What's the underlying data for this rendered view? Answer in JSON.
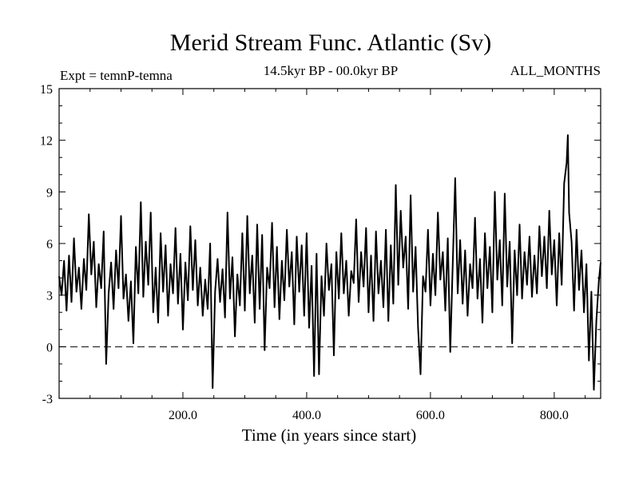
{
  "chart_data": {
    "type": "line",
    "title": "Merid Stream Func. Atlantic (Sv)",
    "subtitle": "14.5kyr BP - 00.0kyr BP",
    "left_note": "Expt = temnP-temna",
    "right_note": "ALL_MONTHS",
    "xlabel": "Time (in years since start)",
    "ylabel": "",
    "xlim": [
      0,
      875
    ],
    "ylim": [
      -3,
      15
    ],
    "x_ticks": [
      200,
      400,
      600,
      800
    ],
    "x_tick_labels": [
      "200.0",
      "400.0",
      "600.0",
      "800.0"
    ],
    "y_ticks": [
      -3,
      0,
      3,
      6,
      9,
      12,
      15
    ],
    "y_tick_labels": [
      "-3",
      "0",
      "3",
      "6",
      "9",
      "12",
      "15"
    ],
    "reference_line": {
      "y": 0,
      "style": "dashed"
    },
    "grid": false,
    "series": [
      {
        "color": "#000000",
        "points": [
          [
            0,
            4.1
          ],
          [
            4,
            3.0
          ],
          [
            8,
            5.0
          ],
          [
            12,
            2.1
          ],
          [
            16,
            5.3
          ],
          [
            20,
            2.6
          ],
          [
            24,
            6.3
          ],
          [
            28,
            3.2
          ],
          [
            32,
            4.6
          ],
          [
            36,
            2.2
          ],
          [
            40,
            5.1
          ],
          [
            44,
            3.3
          ],
          [
            48,
            7.7
          ],
          [
            52,
            4.2
          ],
          [
            56,
            6.1
          ],
          [
            60,
            2.3
          ],
          [
            64,
            4.8
          ],
          [
            68,
            3.4
          ],
          [
            72,
            6.7
          ],
          [
            76,
            -1.0
          ],
          [
            80,
            3.1
          ],
          [
            84,
            4.9
          ],
          [
            88,
            2.2
          ],
          [
            92,
            5.6
          ],
          [
            96,
            3.4
          ],
          [
            100,
            7.6
          ],
          [
            104,
            2.8
          ],
          [
            108,
            4.2
          ],
          [
            112,
            1.5
          ],
          [
            116,
            3.8
          ],
          [
            120,
            0.2
          ],
          [
            124,
            5.8
          ],
          [
            128,
            3.1
          ],
          [
            132,
            8.4
          ],
          [
            136,
            2.9
          ],
          [
            140,
            6.1
          ],
          [
            144,
            3.6
          ],
          [
            148,
            7.8
          ],
          [
            152,
            2.0
          ],
          [
            156,
            4.6
          ],
          [
            160,
            1.4
          ],
          [
            164,
            6.6
          ],
          [
            168,
            3.2
          ],
          [
            172,
            5.9
          ],
          [
            176,
            1.8
          ],
          [
            180,
            4.8
          ],
          [
            184,
            3.1
          ],
          [
            188,
            6.9
          ],
          [
            192,
            2.5
          ],
          [
            196,
            5.4
          ],
          [
            200,
            1.0
          ],
          [
            204,
            4.9
          ],
          [
            208,
            2.7
          ],
          [
            212,
            7.0
          ],
          [
            216,
            3.3
          ],
          [
            220,
            6.2
          ],
          [
            224,
            2.4
          ],
          [
            228,
            4.6
          ],
          [
            232,
            1.8
          ],
          [
            236,
            3.9
          ],
          [
            240,
            2.2
          ],
          [
            244,
            6.0
          ],
          [
            248,
            -2.4
          ],
          [
            252,
            3.2
          ],
          [
            256,
            5.1
          ],
          [
            260,
            2.6
          ],
          [
            264,
            4.5
          ],
          [
            268,
            1.7
          ],
          [
            272,
            7.8
          ],
          [
            276,
            2.8
          ],
          [
            280,
            5.2
          ],
          [
            284,
            0.6
          ],
          [
            288,
            4.2
          ],
          [
            292,
            2.4
          ],
          [
            296,
            6.6
          ],
          [
            300,
            2.1
          ],
          [
            304,
            7.6
          ],
          [
            308,
            3.1
          ],
          [
            312,
            5.3
          ],
          [
            316,
            1.4
          ],
          [
            320,
            7.1
          ],
          [
            324,
            2.2
          ],
          [
            328,
            6.5
          ],
          [
            332,
            -0.2
          ],
          [
            336,
            4.6
          ],
          [
            340,
            3.4
          ],
          [
            344,
            7.2
          ],
          [
            348,
            2.3
          ],
          [
            352,
            5.8
          ],
          [
            356,
            1.6
          ],
          [
            360,
            5.0
          ],
          [
            364,
            2.7
          ],
          [
            368,
            6.8
          ],
          [
            372,
            3.5
          ],
          [
            376,
            5.5
          ],
          [
            380,
            1.3
          ],
          [
            384,
            6.4
          ],
          [
            388,
            3.2
          ],
          [
            392,
            5.9
          ],
          [
            396,
            1.8
          ],
          [
            400,
            6.6
          ],
          [
            404,
            1.1
          ],
          [
            408,
            4.7
          ],
          [
            412,
            -1.7
          ],
          [
            416,
            5.4
          ],
          [
            420,
            -1.6
          ],
          [
            424,
            4.1
          ],
          [
            428,
            1.8
          ],
          [
            432,
            6.0
          ],
          [
            436,
            3.3
          ],
          [
            440,
            4.8
          ],
          [
            444,
            -0.5
          ],
          [
            448,
            5.5
          ],
          [
            452,
            2.8
          ],
          [
            456,
            6.6
          ],
          [
            460,
            3.1
          ],
          [
            464,
            5.0
          ],
          [
            468,
            1.8
          ],
          [
            472,
            4.4
          ],
          [
            476,
            3.7
          ],
          [
            480,
            7.4
          ],
          [
            484,
            2.6
          ],
          [
            488,
            5.5
          ],
          [
            492,
            3.5
          ],
          [
            496,
            6.9
          ],
          [
            500,
            2.0
          ],
          [
            504,
            5.3
          ],
          [
            508,
            1.5
          ],
          [
            512,
            6.7
          ],
          [
            516,
            3.1
          ],
          [
            520,
            5.0
          ],
          [
            524,
            2.3
          ],
          [
            528,
            6.8
          ],
          [
            532,
            1.5
          ],
          [
            536,
            5.9
          ],
          [
            540,
            2.5
          ],
          [
            544,
            9.4
          ],
          [
            548,
            3.6
          ],
          [
            552,
            7.9
          ],
          [
            556,
            4.6
          ],
          [
            560,
            6.4
          ],
          [
            564,
            2.2
          ],
          [
            568,
            8.8
          ],
          [
            572,
            3.2
          ],
          [
            576,
            5.8
          ],
          [
            580,
            1.1
          ],
          [
            584,
            -1.6
          ],
          [
            588,
            4.1
          ],
          [
            592,
            3.2
          ],
          [
            596,
            6.8
          ],
          [
            600,
            2.4
          ],
          [
            604,
            5.4
          ],
          [
            608,
            3.0
          ],
          [
            612,
            7.8
          ],
          [
            616,
            3.9
          ],
          [
            620,
            5.5
          ],
          [
            624,
            2.1
          ],
          [
            628,
            6.3
          ],
          [
            632,
            -0.3
          ],
          [
            636,
            4.8
          ],
          [
            640,
            9.8
          ],
          [
            644,
            3.1
          ],
          [
            648,
            6.2
          ],
          [
            652,
            2.5
          ],
          [
            656,
            5.6
          ],
          [
            660,
            1.8
          ],
          [
            664,
            4.8
          ],
          [
            668,
            3.4
          ],
          [
            672,
            7.5
          ],
          [
            676,
            2.8
          ],
          [
            680,
            5.1
          ],
          [
            684,
            1.4
          ],
          [
            688,
            6.6
          ],
          [
            692,
            3.4
          ],
          [
            696,
            5.8
          ],
          [
            700,
            2.0
          ],
          [
            704,
            9.0
          ],
          [
            708,
            3.9
          ],
          [
            712,
            6.2
          ],
          [
            716,
            2.4
          ],
          [
            720,
            8.9
          ],
          [
            724,
            3.5
          ],
          [
            728,
            6.1
          ],
          [
            732,
            0.2
          ],
          [
            736,
            5.6
          ],
          [
            740,
            3.0
          ],
          [
            744,
            7.1
          ],
          [
            748,
            2.8
          ],
          [
            752,
            5.5
          ],
          [
            756,
            3.6
          ],
          [
            760,
            6.4
          ],
          [
            764,
            2.9
          ],
          [
            768,
            5.3
          ],
          [
            772,
            3.1
          ],
          [
            776,
            7.0
          ],
          [
            780,
            4.1
          ],
          [
            784,
            6.4
          ],
          [
            788,
            3.4
          ],
          [
            792,
            7.9
          ],
          [
            796,
            4.2
          ],
          [
            800,
            6.2
          ],
          [
            804,
            2.4
          ],
          [
            808,
            6.6
          ],
          [
            812,
            3.6
          ],
          [
            816,
            9.5
          ],
          [
            820,
            10.7
          ],
          [
            822,
            12.3
          ],
          [
            824,
            7.8
          ],
          [
            828,
            6.1
          ],
          [
            832,
            2.1
          ],
          [
            836,
            6.8
          ],
          [
            840,
            3.3
          ],
          [
            844,
            5.6
          ],
          [
            848,
            2.0
          ],
          [
            852,
            4.8
          ],
          [
            856,
            -0.8
          ],
          [
            860,
            3.2
          ],
          [
            864,
            -2.5
          ],
          [
            868,
            1.5
          ],
          [
            872,
            3.8
          ],
          [
            875,
            4.9
          ]
        ]
      }
    ]
  }
}
